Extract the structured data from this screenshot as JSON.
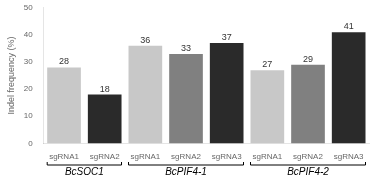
{
  "chart_data": {
    "type": "bar",
    "ylabel": "Indel frequency (%)",
    "groups": [
      {
        "label": "BcSOC1",
        "categories": [
          "sgRNA1",
          "sgRNA2"
        ],
        "values": [
          28,
          18
        ],
        "colors": [
          "#c8c8c8",
          "#2a2a2a"
        ]
      },
      {
        "label": "BcPIF4-1",
        "categories": [
          "sgRNA1",
          "sgRNA2",
          "sgRNA3"
        ],
        "values": [
          36,
          33,
          37
        ],
        "colors": [
          "#c8c8c8",
          "#808080",
          "#2a2a2a"
        ]
      },
      {
        "label": "BcPIF4-2",
        "categories": [
          "sgRNA1",
          "sgRNA2",
          "sgRNA3"
        ],
        "values": [
          27,
          29,
          41
        ],
        "colors": [
          "#c8c8c8",
          "#808080",
          "#2a2a2a"
        ]
      }
    ],
    "ylim": [
      0,
      50
    ],
    "yticks": [
      0,
      10,
      20,
      30,
      40,
      50
    ],
    "grid": false,
    "data_labels": true
  }
}
